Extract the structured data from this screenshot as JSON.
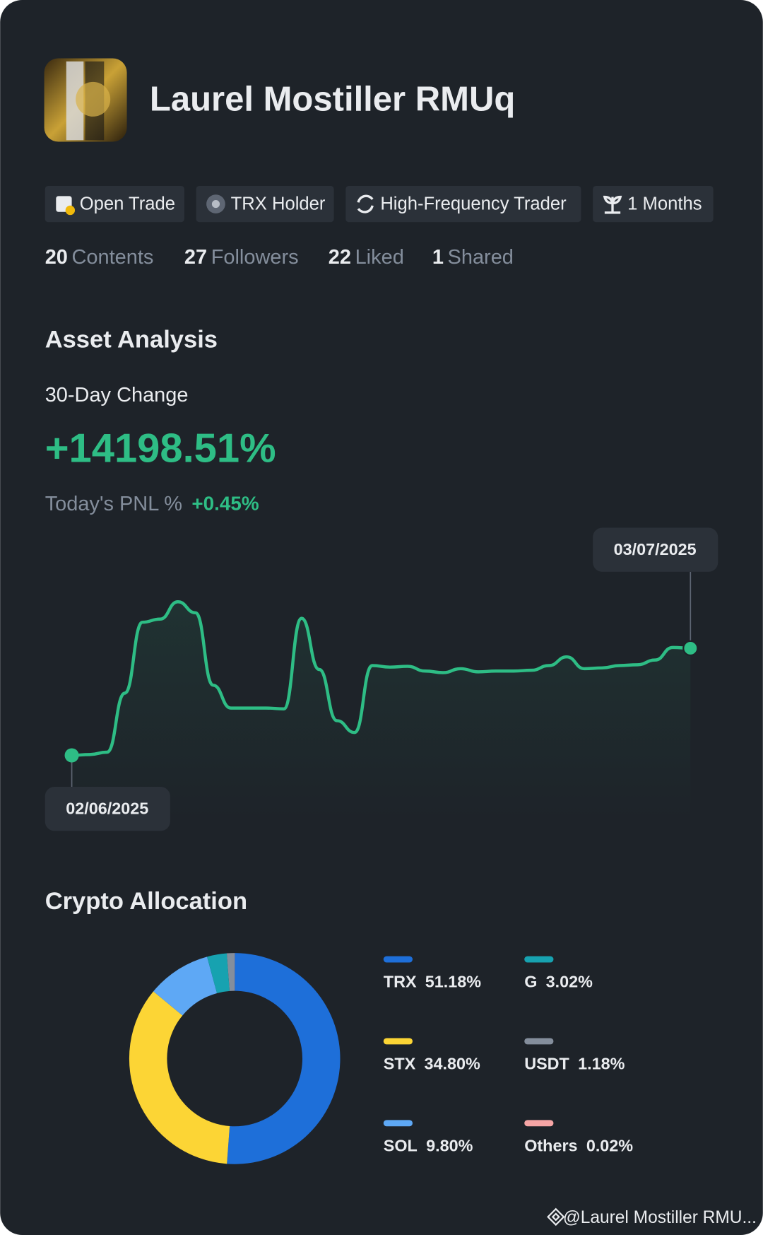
{
  "profile": {
    "name": "Laurel Mostiller RMUq",
    "tags": [
      "Open Trade",
      "TRX Holder",
      "High-Frequency Trader",
      "1 Months"
    ],
    "stats": [
      {
        "value": 20,
        "label": "Contents"
      },
      {
        "value": 27,
        "label": "Followers"
      },
      {
        "value": 22,
        "label": "Liked"
      },
      {
        "value": 1,
        "label": "Shared"
      }
    ]
  },
  "asset_analysis": {
    "title": "Asset Analysis",
    "change_label": "30-Day Change",
    "change": "+14198.51%",
    "pnl_label": "Today's PNL %",
    "pnl": "+0.45%"
  },
  "chart_data": [
    {
      "type": "line",
      "start_label": "02/06/2025",
      "end_label": "03/07/2025",
      "values": [
        1,
        2,
        5,
        80,
        170,
        174,
        196,
        182,
        90,
        61,
        61,
        61,
        60,
        175,
        110,
        45,
        30,
        115,
        113,
        114,
        108,
        106,
        111,
        107,
        108,
        108,
        109,
        115,
        126,
        111,
        112,
        115,
        116,
        122,
        138,
        137
      ],
      "color": "#2ebd85",
      "ylim": [
        0,
        220
      ]
    },
    {
      "type": "pie",
      "title": "Crypto Allocation",
      "categories": [
        "TRX",
        "STX",
        "SOL",
        "G",
        "USDT",
        "Others"
      ],
      "values": [
        51.18,
        34.8,
        9.8,
        3.02,
        1.18,
        0.02
      ],
      "value_labels": [
        "51.18%",
        "34.80%",
        "9.80%",
        "3.02%",
        "1.18%",
        "0.02%"
      ],
      "colors": [
        "#1e6fd9",
        "#fcd535",
        "#5ea8f5",
        "#17a2b0",
        "#848e9c",
        "#f6a5a5"
      ]
    }
  ],
  "watermark": "@Laurel Mostiller RMU..."
}
